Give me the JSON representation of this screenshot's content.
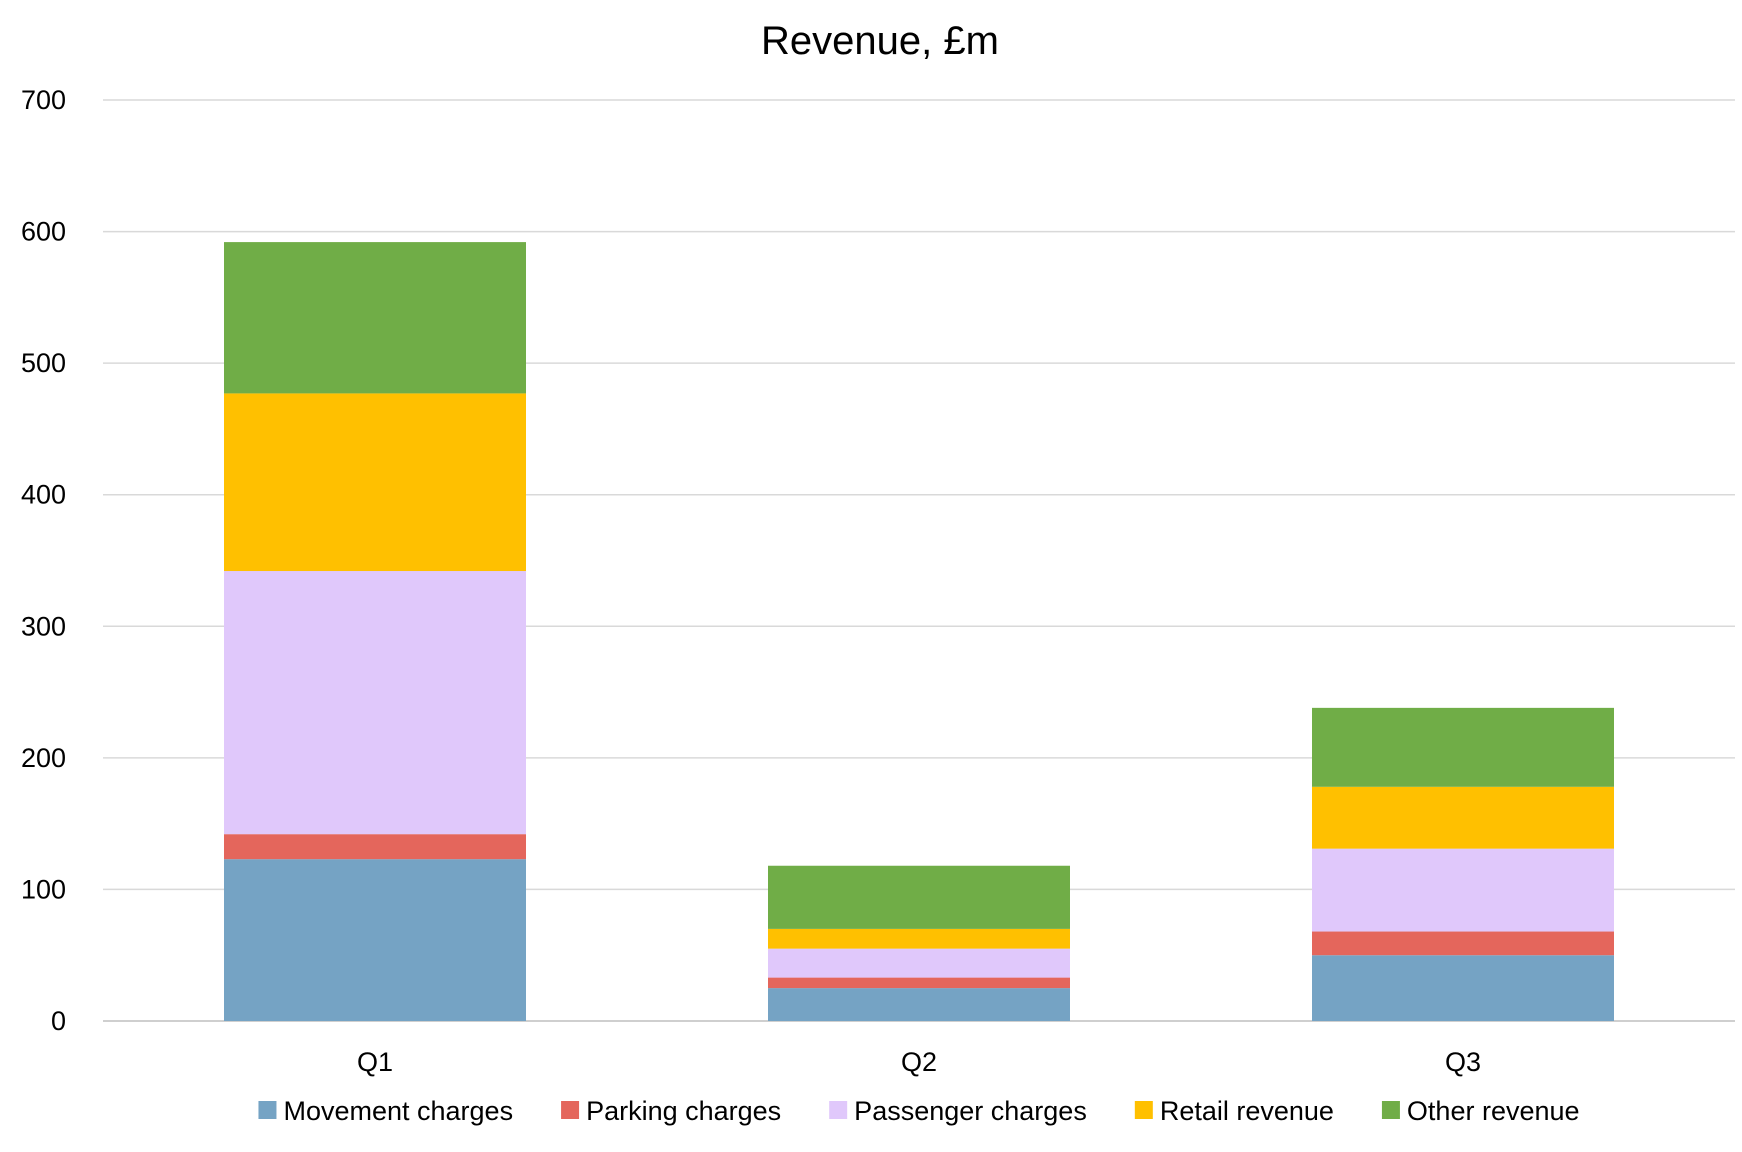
{
  "chart_data": {
    "type": "bar",
    "stacked": true,
    "title": "Revenue, £m",
    "xlabel": "",
    "ylabel": "",
    "categories": [
      "Q1",
      "Q2",
      "Q3"
    ],
    "ylim": [
      0,
      700
    ],
    "yticks": [
      0,
      100,
      200,
      300,
      400,
      500,
      600,
      700
    ],
    "grid": true,
    "legend_position": "bottom",
    "series": [
      {
        "name": "Movement charges",
        "color": "#75A3C4",
        "values": [
          123,
          25,
          50
        ]
      },
      {
        "name": "Parking charges",
        "color": "#E4665C",
        "values": [
          19,
          8,
          18
        ]
      },
      {
        "name": "Passenger charges",
        "color": "#E0C8FB",
        "values": [
          200,
          22,
          63
        ]
      },
      {
        "name": "Retail revenue",
        "color": "#FFC000",
        "values": [
          135,
          15,
          47
        ]
      },
      {
        "name": "Other revenue",
        "color": "#70AD47",
        "values": [
          115,
          48,
          60
        ]
      }
    ]
  }
}
